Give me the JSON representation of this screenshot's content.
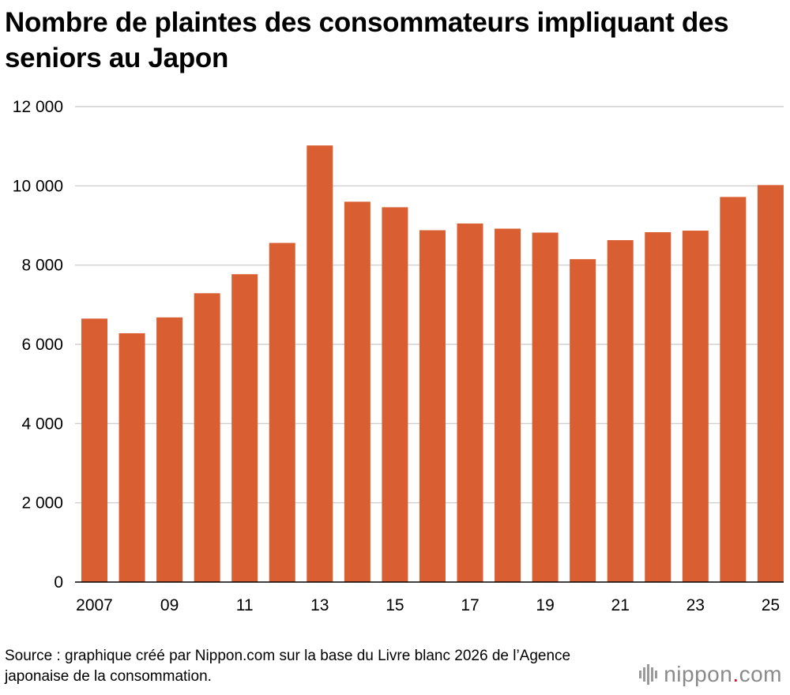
{
  "title": "Nombre de plaintes des consommateurs impliquant des seniors au Japon",
  "source": "Source : graphique créé par Nippon.com sur la base du Livre blanc 2026 de l’Agence japonaise de la consommation.",
  "logo": {
    "name": "nippon",
    "dot": ".",
    "tld": "com"
  },
  "colors": {
    "bar": "#d95f33",
    "grid": "#c8c8c8",
    "axis": "#000000"
  },
  "chart_data": {
    "type": "bar",
    "title": "Nombre de plaintes des consommateurs impliquant des seniors au Japon",
    "xlabel": "",
    "ylabel": "",
    "ylim": [
      0,
      12000
    ],
    "yticks": [
      0,
      2000,
      4000,
      6000,
      8000,
      10000,
      12000
    ],
    "ytick_labels": [
      "0",
      "2 000",
      "4 000",
      "6 000",
      "8 000",
      "10 000",
      "12 000"
    ],
    "categories": [
      "2007",
      "08",
      "09",
      "10",
      "11",
      "12",
      "13",
      "14",
      "15",
      "16",
      "17",
      "18",
      "19",
      "20",
      "21",
      "22",
      "23",
      "24",
      "25"
    ],
    "xtick_labels": [
      "2007",
      "",
      "09",
      "",
      "11",
      "",
      "13",
      "",
      "15",
      "",
      "17",
      "",
      "19",
      "",
      "21",
      "",
      "23",
      "",
      "25"
    ],
    "values": [
      6650,
      6280,
      6680,
      7290,
      7770,
      8560,
      11020,
      9600,
      9460,
      8880,
      9050,
      8920,
      8820,
      8150,
      8630,
      8830,
      8870,
      9720,
      10020
    ],
    "grid": true,
    "legend": "none"
  }
}
